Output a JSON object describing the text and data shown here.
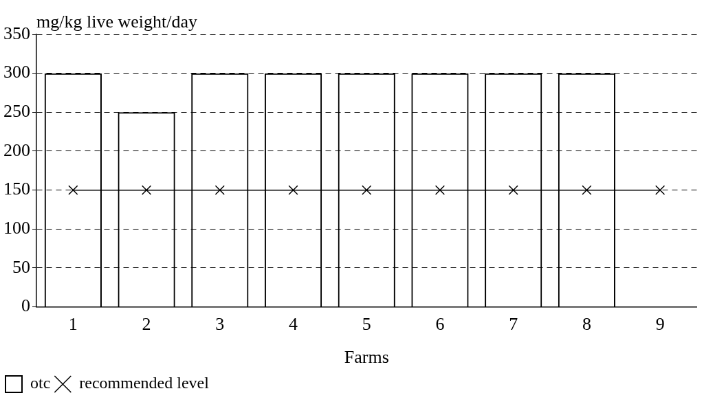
{
  "chart_data": {
    "type": "bar",
    "ylabel": "mg/kg live weight/day",
    "xlabel": "Farms",
    "categories": [
      "1",
      "2",
      "3",
      "4",
      "5",
      "6",
      "7",
      "8",
      "9"
    ],
    "series": [
      {
        "name": "otc",
        "color": "#000000",
        "values": [
          300,
          250,
          300,
          300,
          300,
          300,
          300,
          300,
          null
        ]
      },
      {
        "name": "recommended level",
        "type": "line",
        "color": "#000000",
        "values": [
          150,
          150,
          150,
          150,
          150,
          150,
          150,
          150,
          150
        ]
      }
    ],
    "ylim": [
      0,
      350
    ],
    "yticks": [
      0,
      50,
      100,
      150,
      200,
      250,
      300,
      350
    ],
    "grid": "y",
    "legend": "bottom left",
    "marker": "cross",
    "line_style": "solid"
  }
}
